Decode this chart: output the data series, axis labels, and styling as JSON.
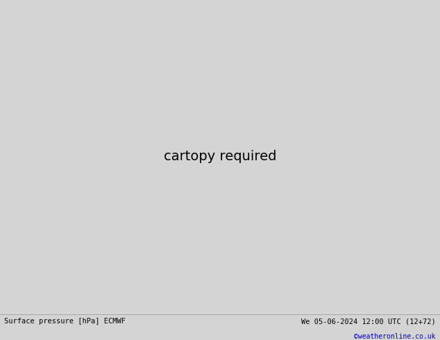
{
  "title_left": "Surface pressure [hPa] ECMWF",
  "title_right": "We 05-06-2024 12:00 UTC (12+72)",
  "credit": "©weatheronline.co.uk",
  "bg_color": "#d4d4d4",
  "land_color": "#c8e8b0",
  "ocean_color": "#dcdcdc",
  "border_color": "#888888",
  "isobar_blue": "#0000cc",
  "isobar_red": "#cc0000",
  "isobar_black": "#000000",
  "extent": [
    -25,
    65,
    -42,
    40
  ],
  "figsize": [
    6.34,
    4.9
  ],
  "dpi": 100
}
